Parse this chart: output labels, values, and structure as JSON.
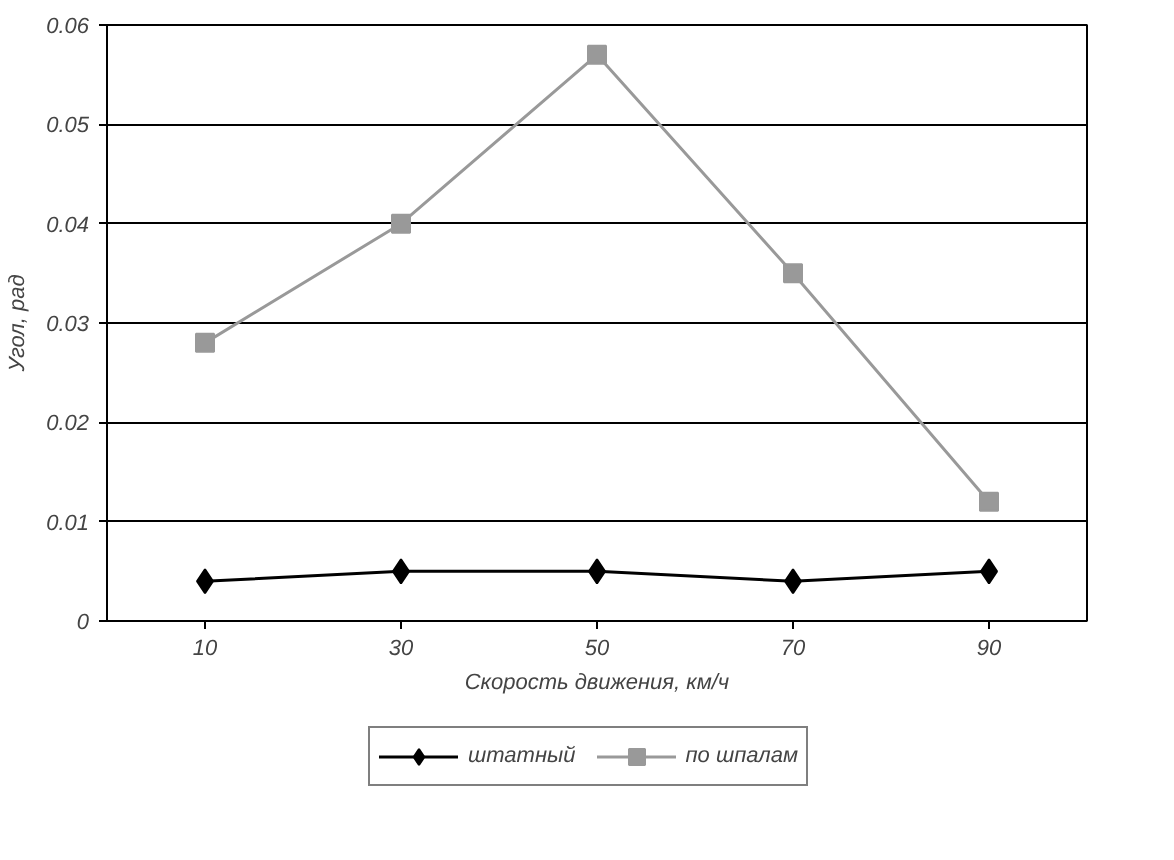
{
  "chart_data": {
    "type": "line",
    "xlabel": "Скорость движения, км/ч",
    "ylabel": "Угол, рад",
    "categories": [
      "10",
      "30",
      "50",
      "70",
      "90"
    ],
    "series": [
      {
        "name": "штатный",
        "color": "#000000",
        "marker": "diamond",
        "values": [
          0.004,
          0.005,
          0.005,
          0.004,
          0.005
        ]
      },
      {
        "name": "по шпалам",
        "color": "#999999",
        "marker": "square",
        "values": [
          0.028,
          0.04,
          0.057,
          0.035,
          0.012
        ]
      }
    ],
    "ylim": [
      0,
      0.06
    ],
    "yticks": [
      0,
      0.01,
      0.02,
      0.03,
      0.04,
      0.05,
      0.06
    ],
    "grid": "y",
    "legend": "bottom",
    "line_style": "solid"
  }
}
